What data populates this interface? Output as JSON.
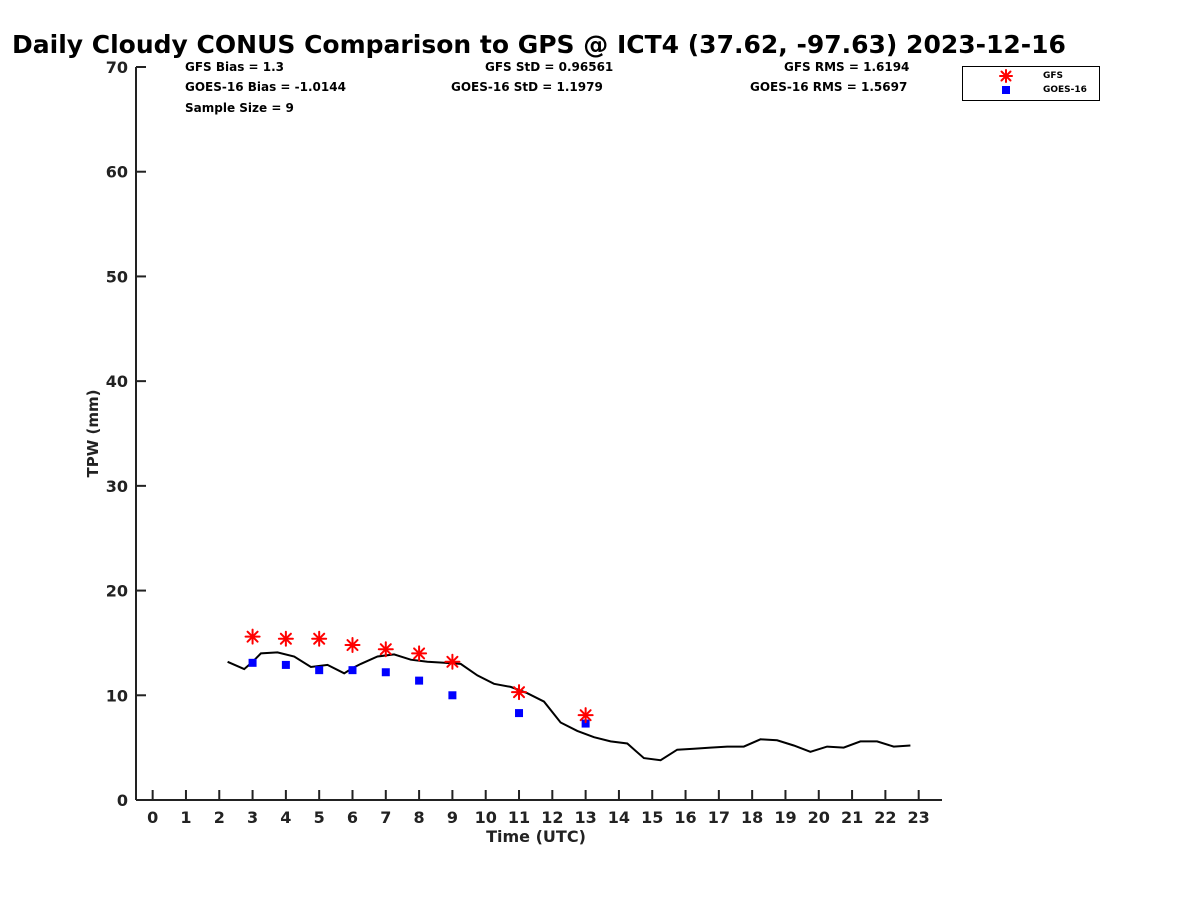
{
  "chart_data": {
    "type": "scatter",
    "title": "Daily Cloudy CONUS Comparison to GPS @ ICT4 (37.62, -97.63) 2023-12-16",
    "xlabel": "Time (UTC)",
    "ylabel": "TPW (mm)",
    "xlim": [
      -0.5,
      23.7
    ],
    "ylim": [
      0,
      70
    ],
    "xticks": [
      0,
      1,
      2,
      3,
      4,
      5,
      6,
      7,
      8,
      9,
      10,
      11,
      12,
      13,
      14,
      15,
      16,
      17,
      18,
      19,
      20,
      21,
      22,
      23
    ],
    "yticks": [
      0,
      10,
      20,
      30,
      40,
      50,
      60,
      70
    ],
    "grid": false,
    "legend_position": "top-right",
    "stats": {
      "gfs_bias": "GFS Bias = 1.3",
      "goes_bias": "GOES-16 Bias = -1.0144",
      "sample_size": "Sample Size = 9",
      "gfs_std": "GFS StD = 0.96561",
      "goes_std": "GOES-16 StD = 1.1979",
      "gfs_rms": "GFS RMS = 1.6194",
      "goes_rms": "GOES-16 RMS = 1.5697"
    },
    "series": [
      {
        "name": "GFS",
        "marker": "asterisk",
        "color": "#ff0000",
        "points": [
          [
            3,
            15.6
          ],
          [
            4,
            15.4
          ],
          [
            5,
            15.4
          ],
          [
            6,
            14.8
          ],
          [
            7,
            14.4
          ],
          [
            8,
            14.0
          ],
          [
            9,
            13.2
          ],
          [
            11,
            10.3
          ],
          [
            13,
            8.1
          ]
        ]
      },
      {
        "name": "GOES-16",
        "marker": "square",
        "color": "#0000ff",
        "points": [
          [
            3,
            13.1
          ],
          [
            4,
            12.9
          ],
          [
            5,
            12.4
          ],
          [
            6,
            12.4
          ],
          [
            7,
            12.2
          ],
          [
            8,
            11.4
          ],
          [
            9,
            10.0
          ],
          [
            11,
            8.3
          ],
          [
            13,
            7.3
          ]
        ]
      },
      {
        "marker": "line",
        "color": "#000000",
        "points": [
          [
            2.25,
            13.2
          ],
          [
            2.75,
            12.5
          ],
          [
            3.0,
            13.2
          ],
          [
            3.25,
            14.0
          ],
          [
            3.75,
            14.1
          ],
          [
            4.25,
            13.7
          ],
          [
            4.75,
            12.7
          ],
          [
            5.25,
            12.9
          ],
          [
            5.75,
            12.1
          ],
          [
            6.0,
            12.6
          ],
          [
            6.25,
            13.0
          ],
          [
            6.75,
            13.7
          ],
          [
            7.25,
            13.9
          ],
          [
            7.75,
            13.4
          ],
          [
            8.25,
            13.2
          ],
          [
            8.75,
            13.1
          ],
          [
            9.25,
            13.0
          ],
          [
            9.75,
            11.9
          ],
          [
            10.25,
            11.1
          ],
          [
            10.75,
            10.8
          ],
          [
            11.25,
            10.2
          ],
          [
            11.75,
            9.4
          ],
          [
            12.25,
            7.4
          ],
          [
            12.75,
            6.6
          ],
          [
            13.25,
            6.0
          ],
          [
            13.75,
            5.6
          ],
          [
            14.25,
            5.4
          ],
          [
            14.75,
            4.0
          ],
          [
            15.25,
            3.8
          ],
          [
            15.75,
            4.8
          ],
          [
            16.25,
            4.9
          ],
          [
            16.75,
            5.0
          ],
          [
            17.25,
            5.1
          ],
          [
            17.75,
            5.1
          ],
          [
            18.25,
            5.8
          ],
          [
            18.75,
            5.7
          ],
          [
            19.25,
            5.2
          ],
          [
            19.75,
            4.6
          ],
          [
            20.25,
            5.1
          ],
          [
            20.75,
            5.0
          ],
          [
            21.25,
            5.6
          ],
          [
            21.75,
            5.6
          ],
          [
            22.25,
            5.1
          ],
          [
            22.75,
            5.2
          ]
        ]
      }
    ]
  }
}
